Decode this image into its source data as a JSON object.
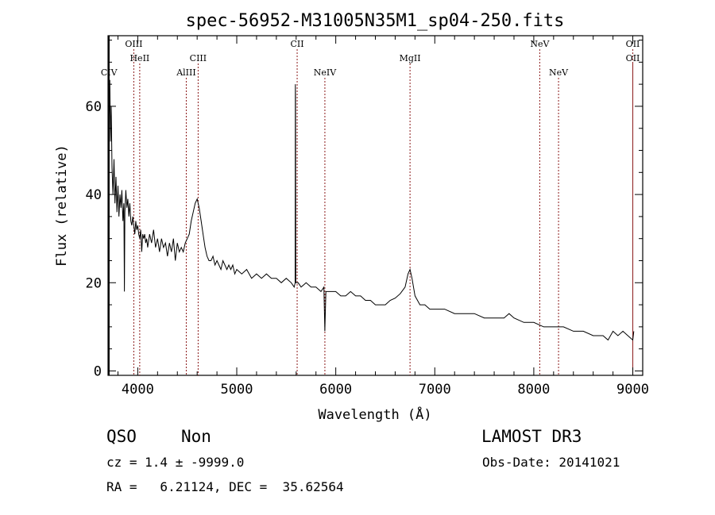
{
  "chart_data": {
    "type": "line",
    "title": "spec-56952-M31005N35M1_sp04-250.fits",
    "xlabel": "Wavelength (Å)",
    "ylabel": "Flux (relative)",
    "xlim": [
      3700,
      9100
    ],
    "ylim": [
      -1,
      76
    ],
    "xticks": [
      4000,
      5000,
      6000,
      7000,
      8000,
      9000
    ],
    "yticks": [
      0,
      20,
      40,
      60
    ],
    "series": [
      {
        "name": "flux",
        "points": [
          [
            3700,
            32
          ],
          [
            3705,
            0
          ],
          [
            3712,
            58
          ],
          [
            3718,
            66
          ],
          [
            3725,
            52
          ],
          [
            3732,
            60
          ],
          [
            3740,
            46
          ],
          [
            3750,
            40
          ],
          [
            3760,
            48
          ],
          [
            3770,
            38
          ],
          [
            3780,
            44
          ],
          [
            3790,
            36
          ],
          [
            3800,
            42
          ],
          [
            3810,
            35
          ],
          [
            3820,
            40
          ],
          [
            3830,
            37
          ],
          [
            3840,
            41
          ],
          [
            3850,
            34
          ],
          [
            3860,
            38
          ],
          [
            3865,
            18
          ],
          [
            3870,
            36
          ],
          [
            3880,
            41
          ],
          [
            3890,
            37
          ],
          [
            3900,
            39
          ],
          [
            3910,
            35
          ],
          [
            3920,
            38
          ],
          [
            3930,
            34
          ],
          [
            3940,
            33
          ],
          [
            3950,
            35
          ],
          [
            3960,
            33
          ],
          [
            3970,
            31
          ],
          [
            3980,
            34
          ],
          [
            3990,
            32
          ],
          [
            4000,
            33
          ],
          [
            4010,
            31
          ],
          [
            4020,
            30
          ],
          [
            4030,
            32
          ],
          [
            4040,
            27
          ],
          [
            4050,
            31
          ],
          [
            4060,
            30
          ],
          [
            4070,
            31
          ],
          [
            4080,
            29
          ],
          [
            4090,
            30
          ],
          [
            4100,
            28
          ],
          [
            4120,
            31
          ],
          [
            4140,
            29
          ],
          [
            4160,
            32
          ],
          [
            4180,
            28
          ],
          [
            4200,
            30
          ],
          [
            4220,
            27
          ],
          [
            4240,
            30
          ],
          [
            4260,
            28
          ],
          [
            4280,
            29
          ],
          [
            4300,
            26
          ],
          [
            4320,
            29
          ],
          [
            4340,
            27
          ],
          [
            4360,
            30
          ],
          [
            4380,
            25
          ],
          [
            4400,
            29
          ],
          [
            4420,
            27
          ],
          [
            4440,
            28
          ],
          [
            4460,
            27
          ],
          [
            4480,
            29
          ],
          [
            4500,
            30
          ],
          [
            4520,
            31
          ],
          [
            4540,
            34
          ],
          [
            4560,
            36
          ],
          [
            4580,
            38
          ],
          [
            4600,
            39
          ],
          [
            4620,
            37
          ],
          [
            4640,
            34
          ],
          [
            4660,
            31
          ],
          [
            4680,
            28
          ],
          [
            4700,
            26
          ],
          [
            4720,
            25
          ],
          [
            4740,
            25
          ],
          [
            4760,
            26
          ],
          [
            4780,
            24
          ],
          [
            4800,
            25
          ],
          [
            4820,
            24
          ],
          [
            4840,
            23
          ],
          [
            4860,
            25
          ],
          [
            4880,
            24
          ],
          [
            4900,
            23
          ],
          [
            4920,
            24
          ],
          [
            4940,
            23
          ],
          [
            4960,
            24
          ],
          [
            4980,
            22
          ],
          [
            5000,
            23
          ],
          [
            5050,
            22
          ],
          [
            5100,
            23
          ],
          [
            5150,
            21
          ],
          [
            5200,
            22
          ],
          [
            5250,
            21
          ],
          [
            5300,
            22
          ],
          [
            5350,
            21
          ],
          [
            5400,
            21
          ],
          [
            5450,
            20
          ],
          [
            5500,
            21
          ],
          [
            5550,
            20
          ],
          [
            5580,
            19
          ],
          [
            5590,
            20
          ],
          [
            5592,
            65
          ],
          [
            5594,
            62
          ],
          [
            5596,
            20
          ],
          [
            5620,
            20
          ],
          [
            5650,
            19
          ],
          [
            5700,
            20
          ],
          [
            5750,
            19
          ],
          [
            5800,
            19
          ],
          [
            5850,
            18
          ],
          [
            5880,
            19
          ],
          [
            5890,
            9
          ],
          [
            5900,
            18
          ],
          [
            5950,
            18
          ],
          [
            6000,
            18
          ],
          [
            6050,
            17
          ],
          [
            6100,
            17
          ],
          [
            6150,
            18
          ],
          [
            6200,
            17
          ],
          [
            6250,
            17
          ],
          [
            6300,
            16
          ],
          [
            6350,
            16
          ],
          [
            6400,
            15
          ],
          [
            6450,
            15
          ],
          [
            6500,
            15
          ],
          [
            6550,
            16
          ],
          [
            6600,
            16.5
          ],
          [
            6650,
            17.5
          ],
          [
            6700,
            19
          ],
          [
            6730,
            22
          ],
          [
            6750,
            23
          ],
          [
            6770,
            21
          ],
          [
            6800,
            17
          ],
          [
            6850,
            15
          ],
          [
            6900,
            15
          ],
          [
            6950,
            14
          ],
          [
            7000,
            14
          ],
          [
            7100,
            14
          ],
          [
            7200,
            13
          ],
          [
            7300,
            13
          ],
          [
            7400,
            13
          ],
          [
            7500,
            12
          ],
          [
            7600,
            12
          ],
          [
            7700,
            12
          ],
          [
            7750,
            13
          ],
          [
            7800,
            12
          ],
          [
            7900,
            11
          ],
          [
            8000,
            11
          ],
          [
            8100,
            10
          ],
          [
            8200,
            10
          ],
          [
            8300,
            10
          ],
          [
            8400,
            9
          ],
          [
            8500,
            9
          ],
          [
            8600,
            8
          ],
          [
            8700,
            8
          ],
          [
            8750,
            7
          ],
          [
            8800,
            9
          ],
          [
            8850,
            8
          ],
          [
            8900,
            9
          ],
          [
            8950,
            8
          ],
          [
            9000,
            7
          ],
          [
            9010,
            9
          ]
        ]
      }
    ],
    "emission_lines": [
      {
        "label": "CIV",
        "x": 3710,
        "row": 2,
        "dashed": false
      },
      {
        "label": "OIII",
        "x": 3960,
        "row": 0,
        "dashed": true
      },
      {
        "label": "HeII",
        "x": 4020,
        "row": 1,
        "dashed": true
      },
      {
        "label": "AlIII",
        "x": 4490,
        "row": 2,
        "dashed": true
      },
      {
        "label": "CIII",
        "x": 4610,
        "row": 1,
        "dashed": true
      },
      {
        "label": "CII",
        "x": 5610,
        "row": 0,
        "dashed": true
      },
      {
        "label": "NeIV",
        "x": 5890,
        "row": 2,
        "dashed": true
      },
      {
        "label": "MgII",
        "x": 6750,
        "row": 1,
        "dashed": true
      },
      {
        "label": "NeV",
        "x": 8060,
        "row": 0,
        "dashed": true
      },
      {
        "label": "NeV",
        "x": 8250,
        "row": 2,
        "dashed": true
      },
      {
        "label": "OII",
        "x": 9000,
        "row": 0,
        "dashed": true
      },
      {
        "label": "OII",
        "x": 9000,
        "row": 1,
        "dashed": true
      }
    ],
    "line_color": "#8b1a1a",
    "grid": false
  },
  "info": {
    "class": "QSO",
    "subclass": "Non",
    "survey": "LAMOST DR3",
    "cz": "cz = 1.4 ± -9999.0",
    "obs_date": "Obs-Date: 20141021",
    "coords": "RA =   6.21124, DEC =  35.62564"
  }
}
